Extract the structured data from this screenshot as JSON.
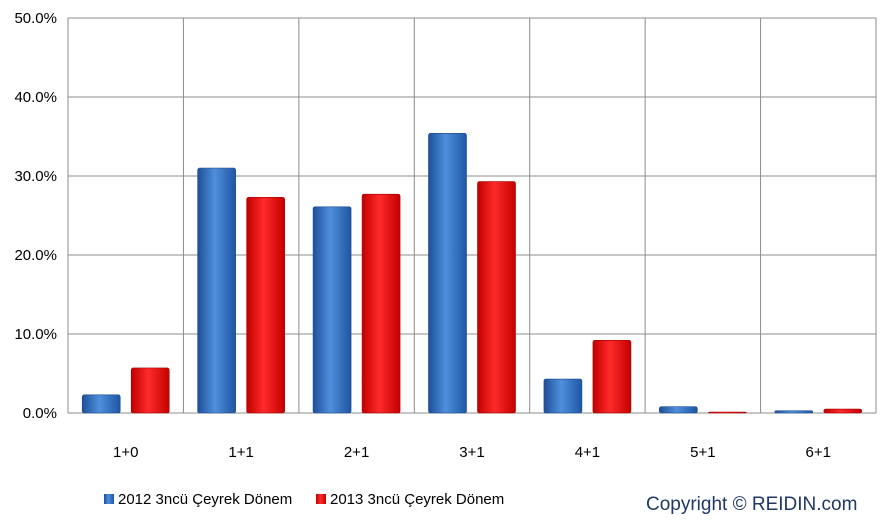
{
  "chart_data": {
    "type": "bar",
    "categories": [
      "1+0",
      "1+1",
      "2+1",
      "3+1",
      "4+1",
      "5+1",
      "6+1"
    ],
    "series": [
      {
        "name": "2012 3ncü Çeyrek Dönem",
        "values": [
          2.3,
          31.0,
          26.1,
          35.4,
          4.3,
          0.8,
          0.3
        ]
      },
      {
        "name": "2013 3ncü Çeyrek Dönem",
        "values": [
          5.7,
          27.3,
          27.7,
          29.3,
          9.2,
          0.1,
          0.5
        ]
      }
    ],
    "ylim": [
      0,
      50
    ],
    "y_ticks": [
      "0.0%",
      "10.0%",
      "20.0%",
      "30.0%",
      "40.0%",
      "50.0%"
    ],
    "grid": true,
    "legend_position": "bottom-left",
    "colors": {
      "series1": "#3b78c9",
      "series2": "#ee1111",
      "grid": "#8c8c8c"
    },
    "copyright": "Copyright © REIDIN.com"
  }
}
